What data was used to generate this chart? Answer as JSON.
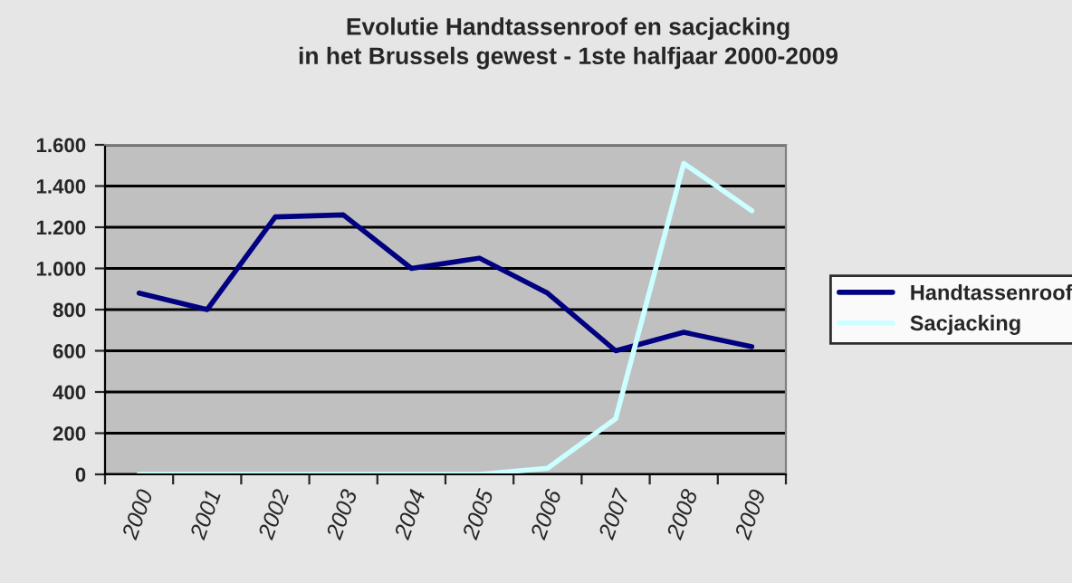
{
  "chart_data": {
    "type": "line",
    "title": "Evolutie Handtassenroof en sacjacking\nin het Brussels gewest - 1ste halfjaar 2000-2009",
    "categories": [
      "2000",
      "2001",
      "2002",
      "2003",
      "2004",
      "2005",
      "2006",
      "2007",
      "2008",
      "2009"
    ],
    "series": [
      {
        "name": "Handtassenroof",
        "color": "#000080",
        "values": [
          880,
          800,
          1250,
          1260,
          1000,
          1050,
          880,
          600,
          690,
          620
        ]
      },
      {
        "name": "Sacjacking",
        "color": "#ccffff",
        "values": [
          0,
          0,
          0,
          0,
          0,
          0,
          30,
          270,
          1510,
          1280
        ]
      }
    ],
    "ylim": [
      0,
      1600
    ],
    "yticks": [
      {
        "value": 0,
        "label": "0"
      },
      {
        "value": 200,
        "label": "200"
      },
      {
        "value": 400,
        "label": "400"
      },
      {
        "value": 600,
        "label": "600"
      },
      {
        "value": 800,
        "label": "800"
      },
      {
        "value": 1000,
        "label": "1.000"
      },
      {
        "value": 1200,
        "label": "1.200"
      },
      {
        "value": 1400,
        "label": "1.400"
      },
      {
        "value": 1600,
        "label": "1.600"
      }
    ],
    "grid": "y",
    "legend": "right",
    "marker": "none",
    "line_style": "solid"
  }
}
